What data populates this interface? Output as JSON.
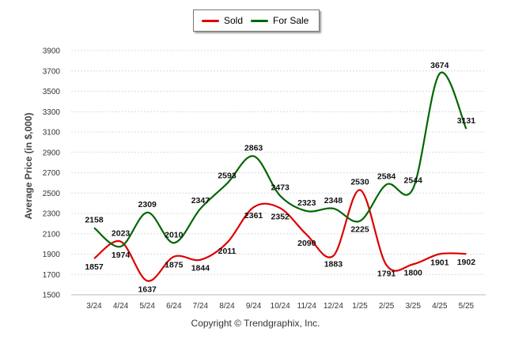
{
  "chart_data": {
    "type": "line",
    "title": "",
    "xlabel": "",
    "ylabel": "Average Price (in $,000)",
    "categories": [
      "3/24",
      "4/24",
      "5/24",
      "6/24",
      "7/24",
      "8/24",
      "9/24",
      "10/24",
      "11/24",
      "12/24",
      "1/25",
      "2/25",
      "3/25",
      "4/25",
      "5/25"
    ],
    "ylim": [
      1500,
      3900
    ],
    "yticks": [
      1500,
      1700,
      1900,
      2100,
      2300,
      2500,
      2700,
      2900,
      3100,
      3300,
      3500,
      3700,
      3900
    ],
    "grid": true,
    "legend_position": "top-center",
    "series": [
      {
        "name": "Sold",
        "color": "#dd0000",
        "values": [
          1857,
          2023,
          1637,
          1875,
          1844,
          2011,
          2361,
          2352,
          2090,
          1883,
          2530,
          1791,
          1800,
          1901,
          1902
        ]
      },
      {
        "name": "For Sale",
        "color": "#006600",
        "values": [
          2158,
          1974,
          2309,
          2010,
          2347,
          2593,
          2863,
          2473,
          2323,
          2348,
          2225,
          2584,
          2544,
          3674,
          3131
        ]
      }
    ]
  },
  "legend": {
    "sold_label": "Sold",
    "for_sale_label": "For Sale"
  },
  "footer": {
    "copyright": "Copyright © Trendgraphix, Inc."
  }
}
